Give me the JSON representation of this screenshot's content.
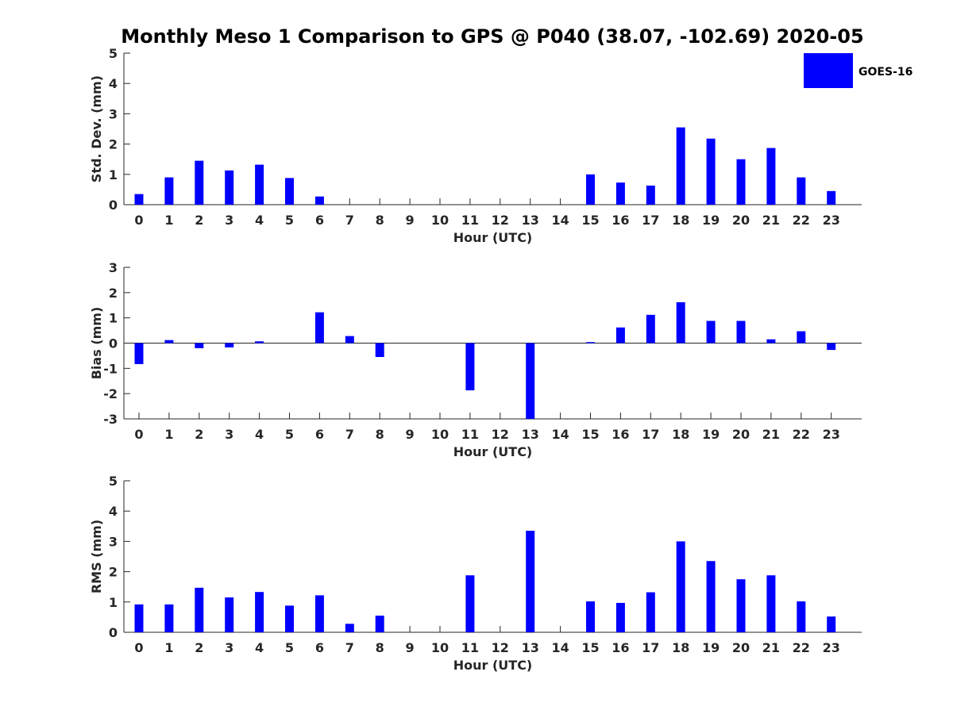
{
  "title": "Monthly Meso 1 Comparison to GPS @ P040 (38.07, -102.69) 2020-05",
  "bar_color": "#0000ff",
  "legend": {
    "label": "GOES-16"
  },
  "chart_data": [
    {
      "type": "bar",
      "ylabel": "Std. Dev. (mm)",
      "xlabel": "Hour (UTC)",
      "categories": [
        "0",
        "1",
        "2",
        "3",
        "4",
        "5",
        "6",
        "7",
        "8",
        "9",
        "10",
        "11",
        "12",
        "13",
        "14",
        "15",
        "16",
        "17",
        "18",
        "19",
        "20",
        "21",
        "22",
        "23"
      ],
      "values": [
        0.35,
        0.9,
        1.45,
        1.13,
        1.32,
        0.88,
        0.27,
        0,
        0,
        0,
        0,
        0,
        0,
        0,
        0,
        1.0,
        0.73,
        0.63,
        2.55,
        2.18,
        1.5,
        1.87,
        0.9,
        0.45
      ],
      "ylim": [
        0,
        5
      ],
      "yticks": [
        0,
        1,
        2,
        3,
        4,
        5
      ]
    },
    {
      "type": "bar",
      "ylabel": "Bias (mm)",
      "xlabel": "Hour (UTC)",
      "categories": [
        "0",
        "1",
        "2",
        "3",
        "4",
        "5",
        "6",
        "7",
        "8",
        "9",
        "10",
        "11",
        "12",
        "13",
        "14",
        "15",
        "16",
        "17",
        "18",
        "19",
        "20",
        "21",
        "22",
        "23"
      ],
      "values": [
        -0.83,
        0.12,
        -0.2,
        -0.17,
        0.07,
        0,
        1.22,
        0.28,
        -0.55,
        0,
        0,
        -1.87,
        0,
        -3.0,
        0,
        0.04,
        0.62,
        1.12,
        1.62,
        0.88,
        0.88,
        0.15,
        0.47,
        -0.27
      ],
      "ylim": [
        -3,
        3
      ],
      "yticks": [
        -3,
        -2,
        -1,
        0,
        1,
        2,
        3
      ]
    },
    {
      "type": "bar",
      "ylabel": "RMS (mm)",
      "xlabel": "Hour (UTC)",
      "categories": [
        "0",
        "1",
        "2",
        "3",
        "4",
        "5",
        "6",
        "7",
        "8",
        "9",
        "10",
        "11",
        "12",
        "13",
        "14",
        "15",
        "16",
        "17",
        "18",
        "19",
        "20",
        "21",
        "22",
        "23"
      ],
      "values": [
        0.92,
        0.92,
        1.47,
        1.15,
        1.33,
        0.88,
        1.22,
        0.28,
        0.55,
        0,
        0,
        1.88,
        0,
        3.35,
        0,
        1.02,
        0.97,
        1.32,
        3.0,
        2.35,
        1.75,
        1.88,
        1.02,
        0.52
      ],
      "ylim": [
        0,
        5
      ],
      "yticks": [
        0,
        1,
        2,
        3,
        4,
        5
      ]
    }
  ]
}
